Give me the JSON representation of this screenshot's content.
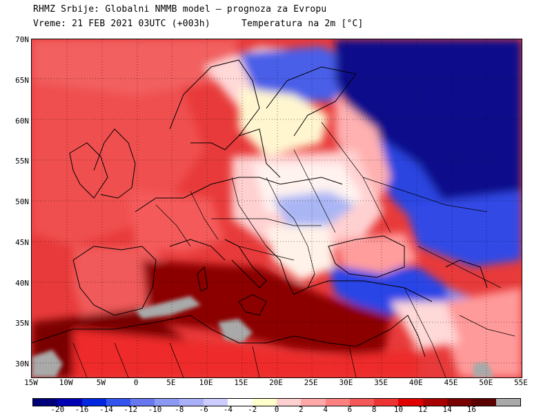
{
  "header": {
    "line1": "RHMZ Srbije: Globalni NMMB model — prognoza za Evropu",
    "time": "Vreme: 21 FEB 2021 03UTC (+003h)",
    "field": "Temperatura na 2m [°C]"
  },
  "axes": {
    "lat_labels": [
      "70N",
      "65N",
      "60N",
      "55N",
      "50N",
      "45N",
      "40N",
      "35N",
      "30N"
    ],
    "lon_labels": [
      "15W",
      "10W",
      "5W",
      "0",
      "5E",
      "10E",
      "15E",
      "20E",
      "25E",
      "30E",
      "35E",
      "40E",
      "45E",
      "50E",
      "55E"
    ]
  },
  "colorbar": {
    "colors": [
      "#00007a",
      "#0000b3",
      "#0026e0",
      "#3355ee",
      "#6677f0",
      "#8c99f4",
      "#aab0f6",
      "#ccccff",
      "#ffffff",
      "#ffffcc",
      "#ffd0d0",
      "#ffa8a8",
      "#ff8080",
      "#f45858",
      "#ee3333",
      "#e00000",
      "#a80000",
      "#780000",
      "#5a0000",
      "#a9a9a9"
    ],
    "labels": [
      "-20",
      "-16",
      "-14",
      "-12",
      "-10",
      "-8",
      "-6",
      "-4",
      "-2",
      "0",
      "2",
      "4",
      "6",
      "8",
      "10",
      "12",
      "14",
      "16"
    ]
  }
}
